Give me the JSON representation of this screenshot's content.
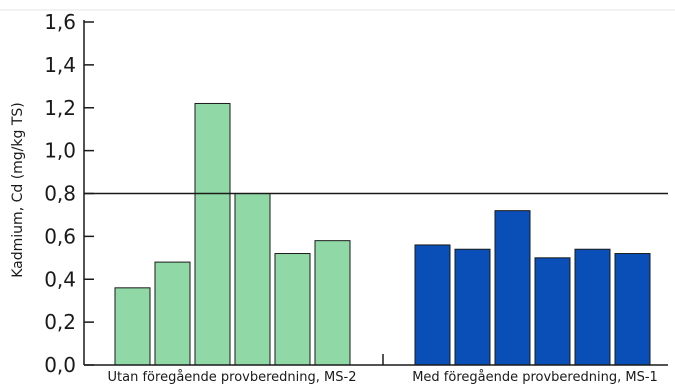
{
  "chart_data": {
    "type": "bar",
    "ylabel": "Kadmium, Cd (mg/kg TS)",
    "ylim": [
      0,
      1.6
    ],
    "yticks": [
      "0,0",
      "0,2",
      "0,4",
      "0,6",
      "0,8",
      "1,0",
      "1,2",
      "1,4",
      "1,6"
    ],
    "reference_line": 0.8,
    "grid": false,
    "groups": [
      {
        "label": "Utan föregående provberedning, MS-2",
        "color": "#90d9a6",
        "values": [
          0.36,
          0.48,
          1.22,
          0.8,
          0.52,
          0.58
        ]
      },
      {
        "label": "Med föregående provberedning, MS-1",
        "color": "#0a4fb8",
        "values": [
          0.56,
          0.54,
          0.72,
          0.5,
          0.54,
          0.52
        ]
      }
    ]
  }
}
